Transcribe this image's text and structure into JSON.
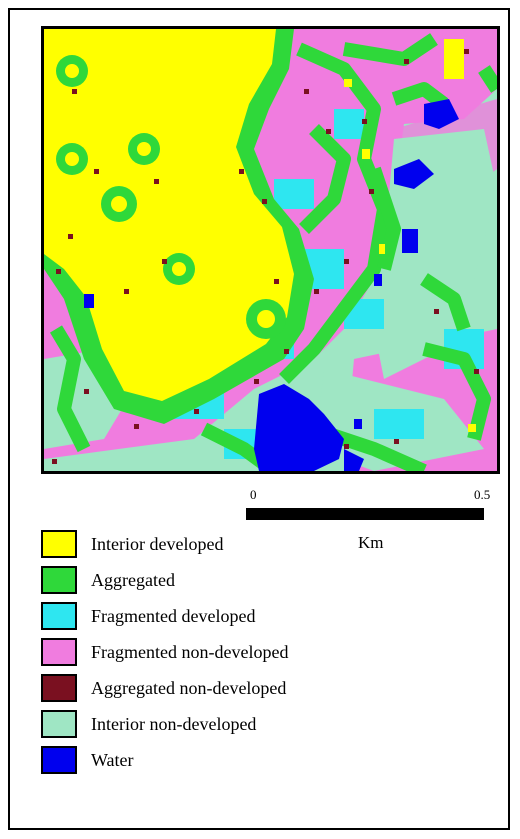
{
  "map": {
    "scale_bar": {
      "start": "0",
      "end": "0.5",
      "unit": "Km"
    },
    "legend": [
      {
        "label": "Interior developed",
        "color": "#ffff00"
      },
      {
        "label": "Aggregated",
        "color": "#2fd83a"
      },
      {
        "label": "Fragmented developed",
        "color": "#2ee6f0"
      },
      {
        "label": "Fragmented non-developed",
        "color": "#f07cdf"
      },
      {
        "label": "Aggregated non-developed",
        "color": "#7a1020"
      },
      {
        "label": "Interior non-developed",
        "color": "#9fe6c4"
      },
      {
        "label": "Water",
        "color": "#0000ee"
      }
    ]
  }
}
